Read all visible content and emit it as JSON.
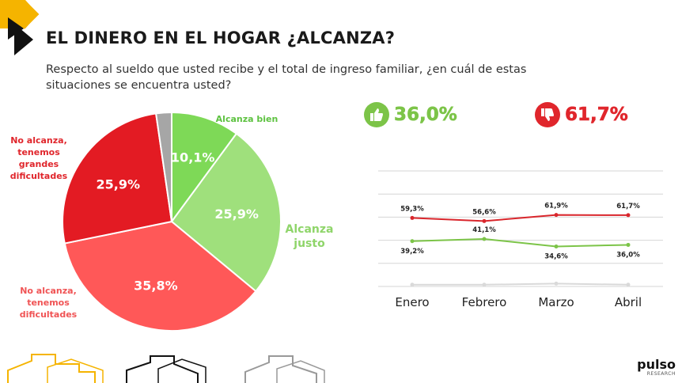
{
  "title": "EL DINERO EN EL HOGAR ¿ALCANZA?",
  "subtitle": "Respecto al sueldo que usted recibe y el total de ingreso familiar, ¿en cuál de estas situaciones se encuentra usted?",
  "kpis": {
    "positive": {
      "value": "36,0%",
      "color": "#7cc448",
      "icon": "thumbs-up-icon"
    },
    "negative": {
      "value": "61,7%",
      "color": "#e0262c",
      "icon": "thumbs-down-icon"
    }
  },
  "pie_labels": {
    "alcanza_bien": "Alcanza bien",
    "alcanza_justo": "Alcanza justo",
    "no_alcanza_dificultades": "No alcanza, tenemos dificultades",
    "no_alcanza_grandes": "No alcanza, tenemos grandes dificultades"
  },
  "brand": {
    "name": "pulso",
    "sub": "RESEARCH"
  },
  "chart_data": [
    {
      "type": "pie",
      "slices": [
        {
          "label": "Alcanza bien",
          "value": 10.1,
          "display": "10,1%",
          "color": "#7ed957"
        },
        {
          "label": "Alcanza justo",
          "value": 25.9,
          "display": "25,9%",
          "color": "#9fe07c"
        },
        {
          "label": "No alcanza, tenemos dificultades",
          "value": 35.8,
          "display": "35,8%",
          "color": "#ff5858"
        },
        {
          "label": "No alcanza, tenemos grandes dificultades",
          "value": 25.9,
          "display": "25,9%",
          "color": "#e31b23"
        },
        {
          "label": "",
          "value": 2.3,
          "display": "",
          "color": "#a6a6a6"
        }
      ]
    },
    {
      "type": "line",
      "categories": [
        "Enero",
        "Febrero",
        "Marzo",
        "Abril"
      ],
      "ylim": [
        0,
        100
      ],
      "grid": true,
      "series": [
        {
          "values": [
            59.3,
            56.6,
            61.9,
            61.7
          ],
          "labels": [
            "59,3%",
            "56,6%",
            "61,9%",
            "61,7%"
          ],
          "color": "#d9262c"
        },
        {
          "values": [
            39.2,
            41.1,
            34.6,
            36.0
          ],
          "labels": [
            "39,2%",
            "41,1%",
            "34,6%",
            "36,0%"
          ],
          "color": "#7cc448"
        },
        {
          "values": [
            1.5,
            1.5,
            2.5,
            1.5
          ],
          "labels": [
            "",
            "",
            "",
            ""
          ],
          "color": "#d9d9d9"
        }
      ]
    }
  ]
}
